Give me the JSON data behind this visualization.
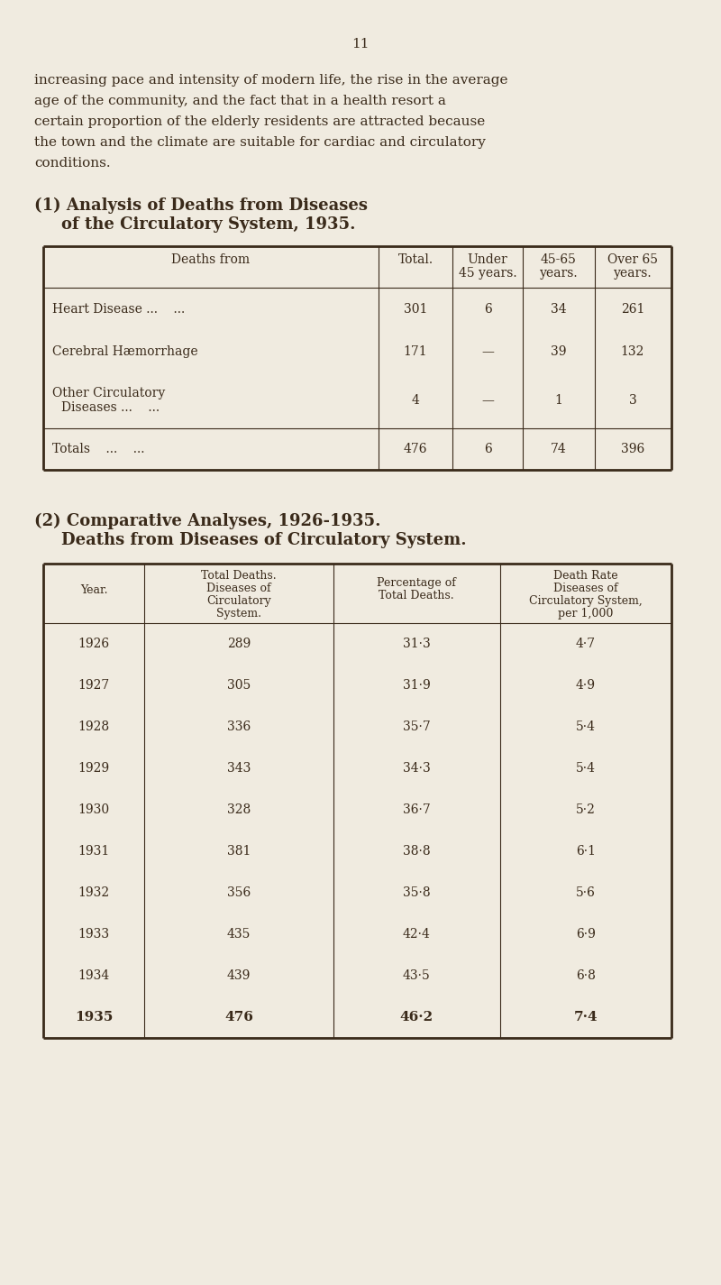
{
  "background_color": "#f0ebe0",
  "text_color": "#3a2a1a",
  "page_number": "11",
  "intro_text": [
    "increasing pace and intensity of modern life, the rise in the average",
    "age of the community, and the fact that in a health resort a",
    "certain proportion of the elderly residents are attracted because",
    "the town and the climate are suitable for cardiac and circulatory",
    "conditions."
  ],
  "section1_title_line1": "(1) Analysis of Deaths from Diseases",
  "section1_title_line2": "of the Circulatory System, 1935.",
  "table1_rows": [
    [
      "Heart Disease ...    ...",
      "301",
      "6",
      "34",
      "261"
    ],
    [
      "Cerebral Hæmorrhage",
      "171",
      "—",
      "39",
      "132"
    ],
    [
      "Other Circulatory\nDiseases ...    ...",
      "4",
      "—",
      "1",
      "3"
    ],
    [
      "Totals    ...    ...",
      "476",
      "6",
      "74",
      "396"
    ]
  ],
  "section2_title_line1": "(2) Comparative Analyses, 1926-1935.",
  "section2_title_line2": "Deaths from Diseases of Circulatory System.",
  "table2_rows": [
    [
      "1926",
      "289",
      "31·3",
      "4·7"
    ],
    [
      "1927",
      "305",
      "31·9",
      "4·9"
    ],
    [
      "1928",
      "336",
      "35·7",
      "5·4"
    ],
    [
      "1929",
      "343",
      "34·3",
      "5·4"
    ],
    [
      "1930",
      "328",
      "36·7",
      "5·2"
    ],
    [
      "1931",
      "381",
      "38·8",
      "6·1"
    ],
    [
      "1932",
      "356",
      "35·8",
      "5·6"
    ],
    [
      "1933",
      "435",
      "42·4",
      "6·9"
    ],
    [
      "1934",
      "439",
      "43·5",
      "6·8"
    ],
    [
      "1935",
      "476",
      "46·2",
      "7·4"
    ]
  ]
}
